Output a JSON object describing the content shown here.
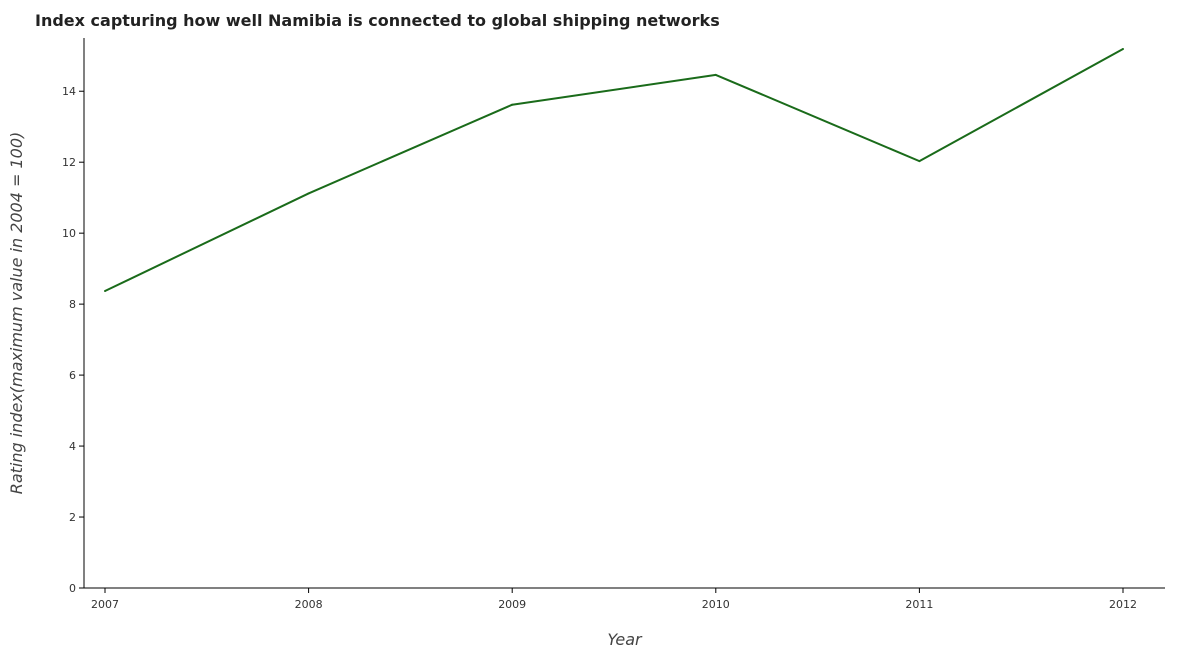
{
  "chart_data": {
    "type": "line",
    "title": "Index capturing how well Namibia is connected to global shipping networks",
    "xlabel": "Year",
    "ylabel": "Rating index(maximum value in 2004 = 100)",
    "categories": [
      "2007",
      "2008",
      "2009",
      "2010",
      "2011",
      "2012"
    ],
    "series": [
      {
        "values": [
          8.37,
          11.12,
          13.62,
          14.46,
          12.03,
          15.19
        ]
      }
    ],
    "ylim": [
      0,
      15.5
    ],
    "yticks": [
      0,
      2,
      4,
      6,
      8,
      10,
      12,
      14
    ],
    "ytick_labels": [
      "0",
      "2",
      "4",
      "6",
      "8",
      "10",
      "12",
      "14"
    ],
    "grid": false,
    "line_color": "#1a6b1a"
  }
}
